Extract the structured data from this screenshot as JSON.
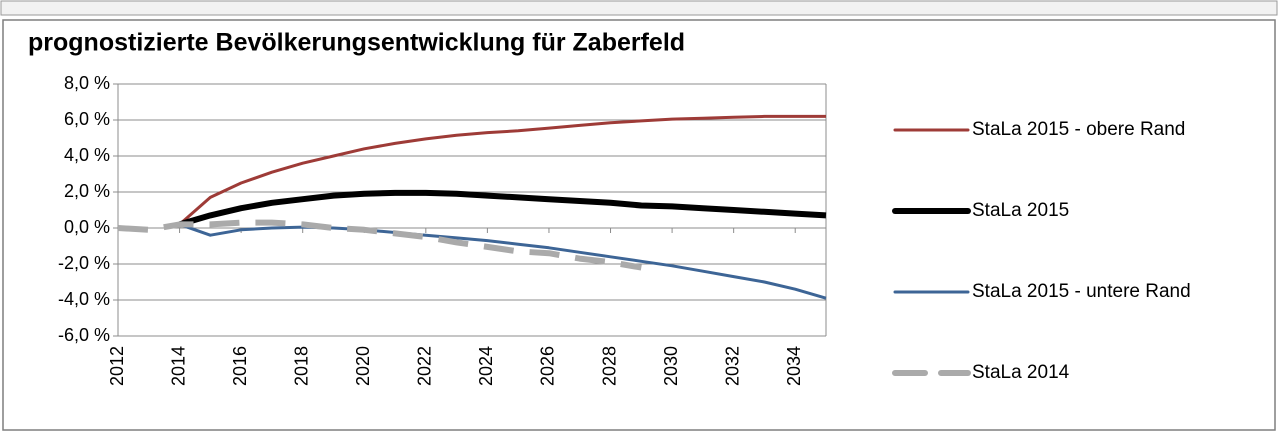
{
  "chart_data": {
    "type": "line",
    "title": "prognostizierte Bevölkerungsentwicklung für Zaberfeld",
    "x": [
      2012,
      2013,
      2014,
      2015,
      2016,
      2017,
      2018,
      2019,
      2020,
      2021,
      2022,
      2023,
      2024,
      2025,
      2026,
      2027,
      2028,
      2029,
      2030,
      2031,
      2032,
      2033,
      2034,
      2035
    ],
    "series": [
      {
        "name": "StaLa 2015 - obere Rand",
        "color": "#9e3b37",
        "width": 3,
        "dashed": false,
        "values": [
          null,
          null,
          0.2,
          1.7,
          2.5,
          3.1,
          3.6,
          4.0,
          4.4,
          4.7,
          4.95,
          5.15,
          5.3,
          5.4,
          5.55,
          5.7,
          5.85,
          5.95,
          6.05,
          6.1,
          6.15,
          6.2,
          6.2,
          6.2
        ]
      },
      {
        "name": "StaLa 2015",
        "color": "#000000",
        "width": 6,
        "dashed": false,
        "values": [
          null,
          null,
          0.2,
          0.7,
          1.1,
          1.4,
          1.6,
          1.8,
          1.9,
          1.95,
          1.95,
          1.9,
          1.8,
          1.7,
          1.6,
          1.5,
          1.4,
          1.25,
          1.2,
          1.1,
          1.0,
          0.9,
          0.8,
          0.7
        ]
      },
      {
        "name": "StaLa 2015 - untere Rand",
        "color": "#3d6596",
        "width": 3,
        "dashed": false,
        "values": [
          null,
          null,
          0.2,
          -0.4,
          -0.1,
          0.0,
          0.05,
          0.0,
          -0.1,
          -0.25,
          -0.4,
          -0.55,
          -0.7,
          -0.9,
          -1.1,
          -1.35,
          -1.6,
          -1.85,
          -2.1,
          -2.4,
          -2.7,
          -3.0,
          -3.4,
          -3.9
        ]
      },
      {
        "name": "StaLa 2014",
        "color": "#aaaaaa",
        "width": 6,
        "dashed": true,
        "values": [
          0.0,
          -0.1,
          0.2,
          0.2,
          0.3,
          0.3,
          0.2,
          0.0,
          -0.1,
          -0.3,
          -0.5,
          -0.8,
          -1.05,
          -1.3,
          -1.4,
          -1.7,
          -1.9,
          -2.2,
          null,
          null,
          null,
          null,
          null,
          null
        ]
      }
    ],
    "xlim": [
      2012,
      2035
    ],
    "xticks": [
      2012,
      2014,
      2016,
      2018,
      2020,
      2022,
      2024,
      2026,
      2028,
      2030,
      2032,
      2034
    ],
    "ylim": [
      -6,
      8
    ],
    "yticks": [
      {
        "value": 8,
        "label": "8,0 %"
      },
      {
        "value": 6,
        "label": "6,0 %"
      },
      {
        "value": 4,
        "label": "4,0 %"
      },
      {
        "value": 2,
        "label": "2,0 %"
      },
      {
        "value": 0,
        "label": "0,0 %"
      },
      {
        "value": -2,
        "label": "-2,0 %"
      },
      {
        "value": -4,
        "label": "-4,0 %"
      },
      {
        "value": -6,
        "label": "-6,0 %"
      }
    ],
    "grid": true,
    "legend": "right"
  }
}
